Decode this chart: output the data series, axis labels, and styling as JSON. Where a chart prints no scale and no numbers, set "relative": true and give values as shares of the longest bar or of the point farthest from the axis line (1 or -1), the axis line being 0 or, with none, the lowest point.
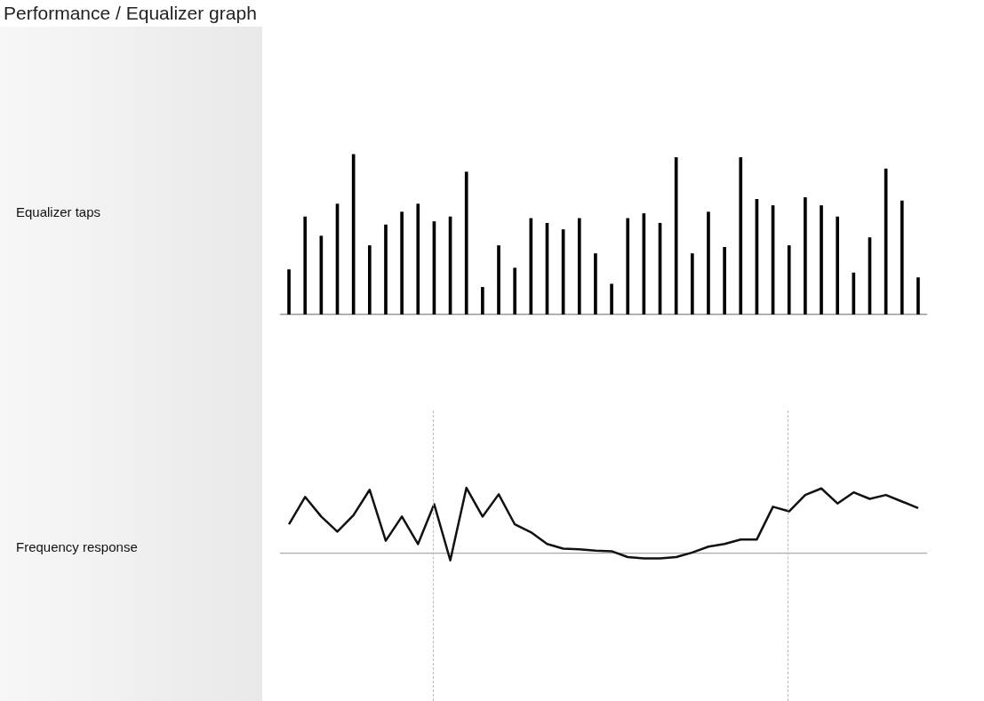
{
  "chart_data": [
    {
      "type": "bar",
      "title": "Performance / Equalizer graph",
      "ylabel": "Equalizer taps",
      "relative": true,
      "categories": [
        null,
        null,
        null,
        null,
        null,
        null,
        null,
        null,
        null,
        null,
        null,
        null,
        null,
        null,
        null,
        null,
        null,
        null,
        null,
        null,
        null,
        null,
        null,
        null,
        null,
        null,
        null,
        null,
        null,
        null,
        null,
        null,
        null,
        null,
        null,
        null,
        null,
        null,
        null,
        null
      ],
      "series": [
        {
          "color": "#000000",
          "values": [
            0.28,
            0.61,
            0.49,
            0.69,
            1,
            0.43,
            0.56,
            0.64,
            0.69,
            0.58,
            0.61,
            0.89,
            0.17,
            0.43,
            0.29,
            0.6,
            0.57,
            0.53,
            0.6,
            0.38,
            0.19,
            0.6,
            0.63,
            0.57,
            0.98,
            0.38,
            0.64,
            0.42,
            0.98,
            0.72,
            0.68,
            0.43,
            0.73,
            0.68,
            0.61,
            0.26,
            0.48,
            0.91,
            0.71,
            0.23
          ]
        }
      ]
    },
    {
      "type": "line",
      "ylabel": "Frequency response",
      "relative": true,
      "categories": [
        null,
        null,
        null,
        null,
        null,
        null,
        null,
        null,
        null,
        null,
        null,
        null,
        null,
        null,
        null,
        null,
        null,
        null,
        null,
        null,
        null,
        null,
        null,
        null,
        null,
        null,
        null,
        null,
        null,
        null,
        null,
        null,
        null,
        null,
        null,
        null,
        null,
        null,
        null,
        null
      ],
      "marker": "none",
      "line_style": "solid",
      "series": [
        {
          "color": "#111111",
          "values": [
            0.44,
            0.86,
            0.56,
            0.33,
            0.58,
            0.97,
            0.19,
            0.56,
            0.14,
            0.75,
            -0.11,
            1,
            0.56,
            0.9,
            0.44,
            0.32,
            0.14,
            0.07,
            0.06,
            0.04,
            0.03,
            -0.06,
            -0.08,
            -0.08,
            -0.06,
            0.01,
            0.1,
            0.14,
            0.21,
            0.21,
            0.71,
            0.64,
            0.89,
            0.99,
            0.76,
            0.93,
            0.83,
            0.89,
            0.79,
            0.69
          ]
        }
      ]
    }
  ]
}
